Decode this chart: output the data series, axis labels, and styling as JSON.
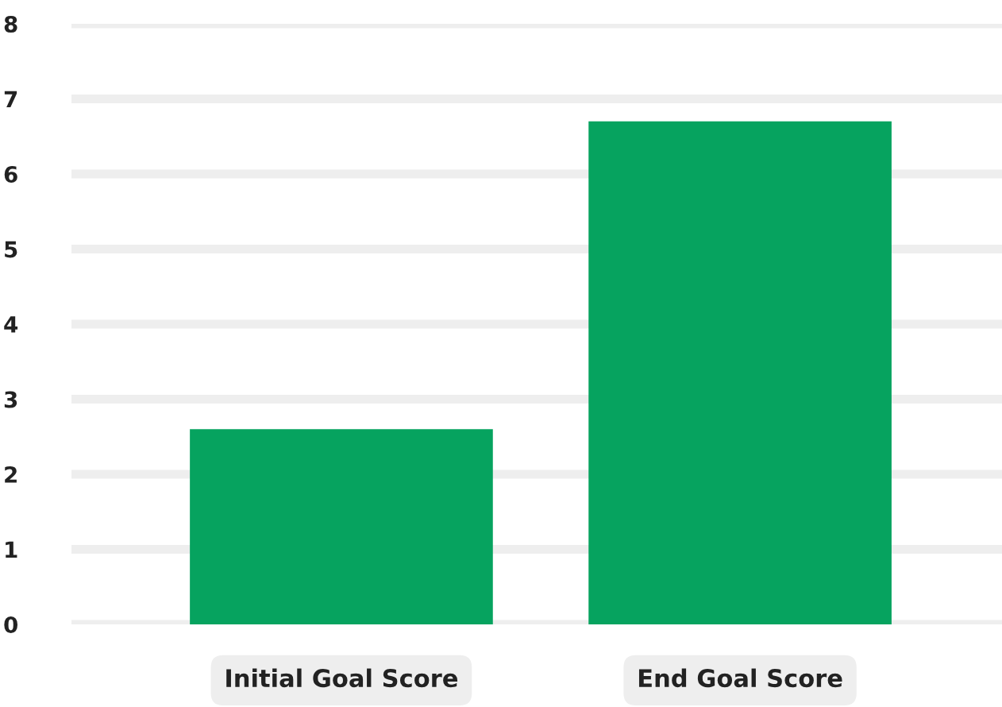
{
  "chart_data": {
    "type": "bar",
    "categories": [
      "Initial Goal Score",
      "End Goal Score"
    ],
    "values": [
      2.6,
      6.7
    ],
    "color": "#06a35f",
    "ylim": [
      0,
      8
    ],
    "yticks": [
      0,
      1,
      2,
      3,
      4,
      5,
      6,
      7,
      8
    ],
    "grid": "y"
  }
}
